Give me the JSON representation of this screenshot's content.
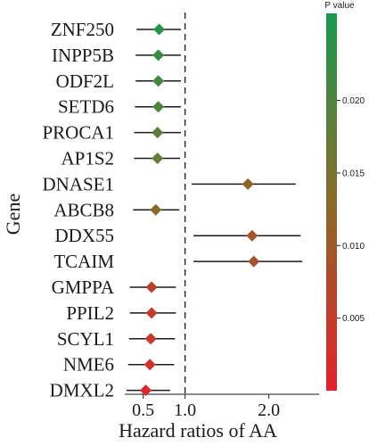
{
  "chart_data": {
    "type": "forest",
    "xlabel": "Hazard ratios of AA",
    "ylabel": "Gene",
    "x_ticks": [
      {
        "value": 0.5,
        "label": "0.5"
      },
      {
        "value": 1.0,
        "label": "1.0"
      },
      {
        "value": 2.0,
        "label": "2.0"
      }
    ],
    "reference_line": 1.0,
    "reference_line_style": "dashed",
    "rows": [
      {
        "gene": "ZNF250",
        "hr": 0.69,
        "lower": 0.42,
        "upper": 0.95,
        "p": 0.0245
      },
      {
        "gene": "INPP5B",
        "hr": 0.68,
        "lower": 0.41,
        "upper": 0.95,
        "p": 0.0225
      },
      {
        "gene": "ODF2L",
        "hr": 0.68,
        "lower": 0.41,
        "upper": 0.95,
        "p": 0.021
      },
      {
        "gene": "SETD6",
        "hr": 0.68,
        "lower": 0.4,
        "upper": 0.95,
        "p": 0.02
      },
      {
        "gene": "PROCA1",
        "hr": 0.67,
        "lower": 0.39,
        "upper": 0.95,
        "p": 0.0185
      },
      {
        "gene": "AP1S2",
        "hr": 0.67,
        "lower": 0.39,
        "upper": 0.94,
        "p": 0.0175
      },
      {
        "gene": "DNASE1",
        "hr": 1.75,
        "lower": 1.08,
        "upper": 2.32,
        "p": 0.012
      },
      {
        "gene": "ABCB8",
        "hr": 0.65,
        "lower": 0.38,
        "upper": 0.93,
        "p": 0.013
      },
      {
        "gene": "DDX55",
        "hr": 1.8,
        "lower": 1.1,
        "upper": 2.38,
        "p": 0.0095
      },
      {
        "gene": "TCAIM",
        "hr": 1.82,
        "lower": 1.1,
        "upper": 2.4,
        "p": 0.0088
      },
      {
        "gene": "GMPPA",
        "hr": 0.6,
        "lower": 0.34,
        "upper": 0.89,
        "p": 0.0055
      },
      {
        "gene": "PPIL2",
        "hr": 0.6,
        "lower": 0.34,
        "upper": 0.89,
        "p": 0.005
      },
      {
        "gene": "SCYL1",
        "hr": 0.59,
        "lower": 0.33,
        "upper": 0.88,
        "p": 0.0045
      },
      {
        "gene": "NME6",
        "hr": 0.58,
        "lower": 0.32,
        "upper": 0.87,
        "p": 0.0035
      },
      {
        "gene": "DMXL2",
        "hr": 0.53,
        "lower": 0.3,
        "upper": 0.82,
        "p": 0.001
      }
    ],
    "x_range": [
      0.28,
      2.6
    ],
    "color_scale": {
      "title": "P value",
      "min": 0.0,
      "max": 0.026,
      "low_color": "#e3202b",
      "high_color": "#1a9a4f",
      "ticks": [
        {
          "value": 0.005,
          "label": "0.005"
        },
        {
          "value": 0.01,
          "label": "0.010"
        },
        {
          "value": 0.015,
          "label": "0.015"
        },
        {
          "value": 0.02,
          "label": "0.020"
        }
      ]
    }
  }
}
